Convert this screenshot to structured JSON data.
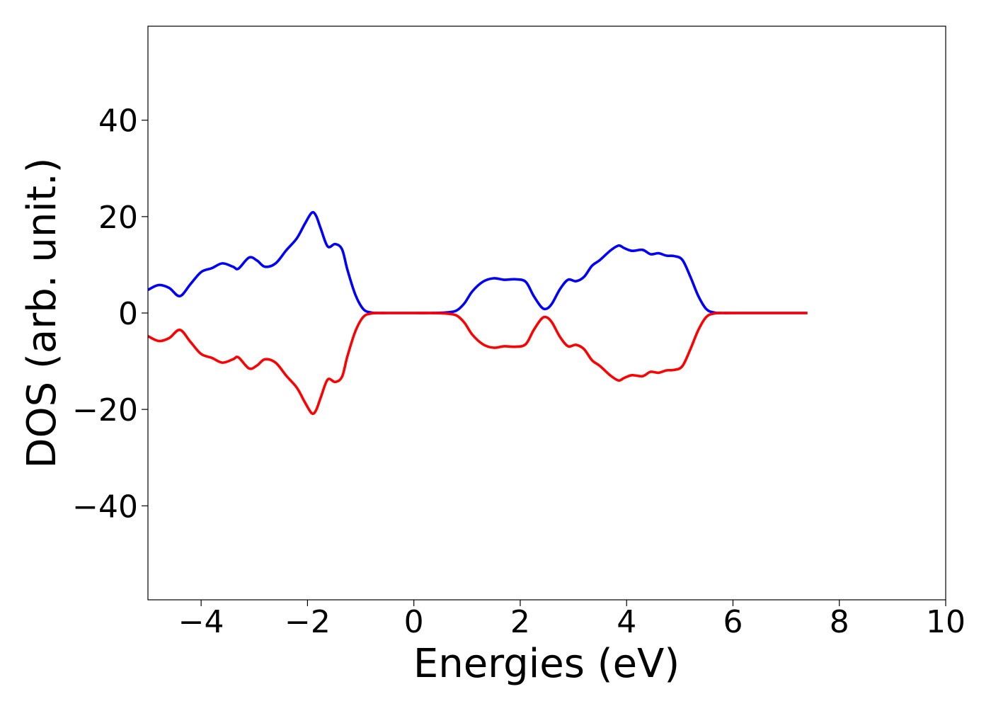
{
  "chart_data": {
    "type": "line",
    "title": "",
    "xlabel": "Energies (eV)",
    "ylabel": "DOS (arb. unit.)",
    "xlim": [
      -5,
      10
    ],
    "ylim": [
      -59.5,
      59.5
    ],
    "grid": false,
    "xticks": [
      -4,
      -2,
      0,
      2,
      4,
      6,
      8,
      10
    ],
    "yticks": [
      -40,
      -20,
      0,
      20,
      40
    ],
    "xtick_labels": [
      "−4",
      "−2",
      "0",
      "2",
      "4",
      "6",
      "8",
      "10"
    ],
    "ytick_labels": [
      "−40",
      "−20",
      "0",
      "20",
      "40"
    ],
    "series": [
      {
        "color": "#0000ff",
        "x": [
          -5.0,
          -4.8,
          -4.6,
          -4.4,
          -4.2,
          -4.0,
          -3.8,
          -3.6,
          -3.4,
          -3.3,
          -3.1,
          -2.95,
          -2.8,
          -2.6,
          -2.4,
          -2.2,
          -2.05,
          -1.92,
          -1.84,
          -1.75,
          -1.62,
          -1.48,
          -1.35,
          -1.25,
          -1.1,
          -0.95,
          -0.8,
          -0.65,
          -0.5,
          -0.3,
          0.0,
          0.3,
          0.6,
          0.8,
          0.95,
          1.1,
          1.3,
          1.5,
          1.7,
          1.9,
          2.1,
          2.25,
          2.4,
          2.5,
          2.6,
          2.75,
          2.9,
          3.05,
          3.2,
          3.35,
          3.5,
          3.7,
          3.85,
          3.95,
          4.1,
          4.3,
          4.45,
          4.6,
          4.75,
          4.9,
          5.05,
          5.2,
          5.35,
          5.5,
          5.65,
          5.8,
          6.0,
          6.5,
          7.0,
          7.4
        ],
        "y": [
          4.8,
          5.8,
          5.2,
          3.5,
          6.0,
          8.5,
          9.3,
          10.3,
          9.6,
          9.2,
          11.5,
          10.9,
          9.6,
          10.3,
          13.0,
          15.5,
          18.5,
          20.8,
          20.2,
          17.5,
          13.8,
          14.3,
          13.2,
          9.0,
          3.8,
          0.8,
          0.1,
          0.0,
          0.0,
          0.0,
          0.0,
          0.0,
          0.1,
          0.5,
          2.0,
          4.5,
          6.5,
          7.2,
          6.9,
          7.0,
          6.5,
          3.6,
          1.2,
          0.9,
          2.0,
          5.0,
          6.9,
          6.6,
          7.5,
          9.8,
          11.0,
          13.0,
          14.0,
          13.5,
          12.9,
          13.1,
          12.2,
          12.4,
          11.9,
          11.8,
          11.0,
          7.5,
          3.5,
          0.8,
          0.1,
          0.0,
          0.0,
          0.0,
          0.0,
          0.0
        ]
      },
      {
        "color": "#ff0000",
        "x": [
          -5.0,
          -4.8,
          -4.6,
          -4.4,
          -4.2,
          -4.0,
          -3.8,
          -3.6,
          -3.4,
          -3.3,
          -3.1,
          -2.95,
          -2.8,
          -2.6,
          -2.4,
          -2.2,
          -2.05,
          -1.92,
          -1.84,
          -1.75,
          -1.62,
          -1.48,
          -1.35,
          -1.25,
          -1.1,
          -0.95,
          -0.8,
          -0.65,
          -0.5,
          -0.3,
          0.0,
          0.3,
          0.6,
          0.8,
          0.95,
          1.1,
          1.3,
          1.5,
          1.7,
          1.9,
          2.1,
          2.25,
          2.4,
          2.5,
          2.6,
          2.75,
          2.9,
          3.05,
          3.2,
          3.35,
          3.5,
          3.7,
          3.85,
          3.95,
          4.1,
          4.3,
          4.45,
          4.6,
          4.75,
          4.9,
          5.05,
          5.2,
          5.35,
          5.5,
          5.65,
          5.8,
          6.0,
          6.5,
          7.0,
          7.4
        ],
        "y": [
          -4.8,
          -5.8,
          -5.2,
          -3.5,
          -6.0,
          -8.5,
          -9.3,
          -10.3,
          -9.6,
          -9.2,
          -11.5,
          -10.9,
          -9.6,
          -10.3,
          -13.0,
          -15.5,
          -18.5,
          -20.8,
          -20.2,
          -17.5,
          -13.8,
          -14.3,
          -13.2,
          -9.0,
          -3.8,
          -0.8,
          -0.1,
          0.0,
          0.0,
          0.0,
          0.0,
          0.0,
          -0.1,
          -0.5,
          -2.0,
          -4.5,
          -6.5,
          -7.2,
          -6.9,
          -7.0,
          -6.5,
          -3.6,
          -1.2,
          -0.9,
          -2.0,
          -5.0,
          -6.9,
          -6.6,
          -7.5,
          -9.8,
          -11.0,
          -13.0,
          -14.0,
          -13.5,
          -12.9,
          -13.1,
          -12.2,
          -12.4,
          -11.9,
          -11.8,
          -11.0,
          -7.5,
          -3.5,
          -0.8,
          -0.1,
          0.0,
          0.0,
          0.0,
          0.0,
          0.0
        ]
      }
    ]
  }
}
